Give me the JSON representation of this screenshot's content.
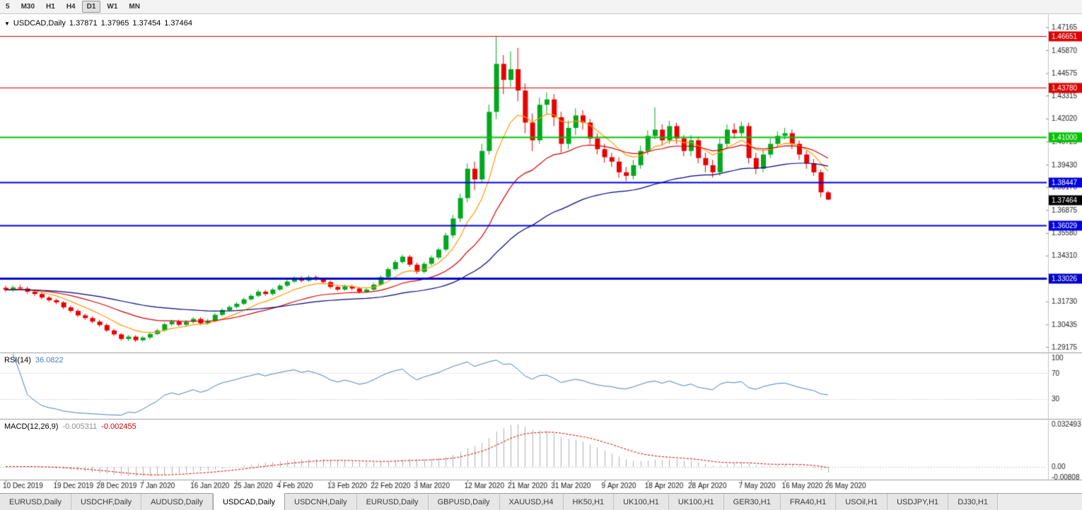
{
  "toolbar": {
    "timeframes": [
      "5",
      "M30",
      "H1",
      "H4",
      "D1",
      "W1",
      "MN"
    ],
    "active_timeframe": "D1"
  },
  "chart_title": {
    "dropdown_icon": "▼",
    "symbol": "USDCAD,Daily",
    "open": "1.37871",
    "high": "1.37965",
    "low": "1.37454",
    "close": "1.37464"
  },
  "chart_data": {
    "type": "candlestick",
    "symbol": "USDCAD",
    "timeframe": "Daily",
    "ylim": [
      1.289,
      1.479
    ],
    "colors": {
      "bull": "#00a81e",
      "bear": "#e80000",
      "background": "#ffffff",
      "axis_text": "#1a1a1a"
    },
    "candles": [
      [
        1.325,
        1.3262,
        1.3226,
        1.3238
      ],
      [
        1.3238,
        1.3264,
        1.3228,
        1.3252
      ],
      [
        1.3252,
        1.3266,
        1.3236,
        1.3246
      ],
      [
        1.3246,
        1.3256,
        1.3218,
        1.3228
      ],
      [
        1.3228,
        1.3238,
        1.3205,
        1.3215
      ],
      [
        1.3215,
        1.3225,
        1.3185,
        1.3195
      ],
      [
        1.3195,
        1.3205,
        1.317,
        1.318
      ],
      [
        1.318,
        1.319,
        1.3158,
        1.3168
      ],
      [
        1.3168,
        1.3176,
        1.313,
        1.314
      ],
      [
        1.314,
        1.315,
        1.311,
        1.312
      ],
      [
        1.312,
        1.313,
        1.3085,
        1.3095
      ],
      [
        1.3095,
        1.3105,
        1.307,
        1.308
      ],
      [
        1.308,
        1.309,
        1.305,
        1.306
      ],
      [
        1.306,
        1.307,
        1.303,
        1.304
      ],
      [
        1.304,
        1.305,
        1.3,
        1.301
      ],
      [
        1.301,
        1.302,
        1.2978,
        1.2988
      ],
      [
        1.2988,
        1.2996,
        1.2952,
        1.2962
      ],
      [
        1.2962,
        1.2985,
        1.295,
        1.2975
      ],
      [
        1.2975,
        1.2983,
        1.2945,
        1.2955
      ],
      [
        1.2955,
        1.298,
        1.2947,
        1.297
      ],
      [
        1.297,
        1.3,
        1.296,
        1.299
      ],
      [
        1.299,
        1.302,
        1.2982,
        1.301
      ],
      [
        1.301,
        1.3055,
        1.3002,
        1.3045
      ],
      [
        1.3045,
        1.307,
        1.3035,
        1.306
      ],
      [
        1.306,
        1.307,
        1.3032,
        1.3042
      ],
      [
        1.3042,
        1.3068,
        1.3034,
        1.3058
      ],
      [
        1.3058,
        1.3085,
        1.3048,
        1.3075
      ],
      [
        1.3075,
        1.3085,
        1.304,
        1.305
      ],
      [
        1.305,
        1.3075,
        1.3042,
        1.3065
      ],
      [
        1.3065,
        1.3108,
        1.3057,
        1.3098
      ],
      [
        1.3098,
        1.3135,
        1.309,
        1.3125
      ],
      [
        1.3125,
        1.3152,
        1.3117,
        1.3142
      ],
      [
        1.3142,
        1.317,
        1.3134,
        1.316
      ],
      [
        1.316,
        1.3195,
        1.3152,
        1.3185
      ],
      [
        1.3185,
        1.3215,
        1.3177,
        1.3205
      ],
      [
        1.3205,
        1.3238,
        1.3197,
        1.3228
      ],
      [
        1.3228,
        1.3238,
        1.3205,
        1.3215
      ],
      [
        1.3215,
        1.325,
        1.3207,
        1.324
      ],
      [
        1.324,
        1.3272,
        1.3232,
        1.3262
      ],
      [
        1.3262,
        1.3295,
        1.3254,
        1.3285
      ],
      [
        1.3285,
        1.3315,
        1.3277,
        1.3305
      ],
      [
        1.3305,
        1.3315,
        1.328,
        1.329
      ],
      [
        1.329,
        1.332,
        1.3282,
        1.331
      ],
      [
        1.331,
        1.332,
        1.3288,
        1.3298
      ],
      [
        1.3298,
        1.3308,
        1.3272,
        1.3282
      ],
      [
        1.3282,
        1.3292,
        1.3245,
        1.3255
      ],
      [
        1.3255,
        1.3265,
        1.323,
        1.324
      ],
      [
        1.324,
        1.3268,
        1.3232,
        1.3258
      ],
      [
        1.3258,
        1.3268,
        1.3236,
        1.3246
      ],
      [
        1.3246,
        1.3256,
        1.3218,
        1.3228
      ],
      [
        1.3228,
        1.325,
        1.322,
        1.324
      ],
      [
        1.324,
        1.3278,
        1.3232,
        1.3268
      ],
      [
        1.3268,
        1.332,
        1.326,
        1.331
      ],
      [
        1.331,
        1.3365,
        1.3302,
        1.3355
      ],
      [
        1.3355,
        1.3407,
        1.3347,
        1.3395
      ],
      [
        1.3395,
        1.3437,
        1.3385,
        1.3425
      ],
      [
        1.3425,
        1.3435,
        1.3368,
        1.338
      ],
      [
        1.338,
        1.3392,
        1.3328,
        1.334
      ],
      [
        1.334,
        1.3397,
        1.333,
        1.3385
      ],
      [
        1.3385,
        1.3432,
        1.3375,
        1.342
      ],
      [
        1.342,
        1.3477,
        1.341,
        1.3465
      ],
      [
        1.3465,
        1.356,
        1.3455,
        1.3545
      ],
      [
        1.3545,
        1.366,
        1.353,
        1.364
      ],
      [
        1.364,
        1.378,
        1.362,
        1.3755
      ],
      [
        1.3755,
        1.395,
        1.373,
        1.392
      ],
      [
        1.392,
        1.396,
        1.38,
        1.386
      ],
      [
        1.386,
        1.406,
        1.384,
        1.402
      ],
      [
        1.402,
        1.428,
        1.4,
        1.424
      ],
      [
        1.424,
        1.4668,
        1.42,
        1.451
      ],
      [
        1.451,
        1.456,
        1.434,
        1.442
      ],
      [
        1.442,
        1.458,
        1.438,
        1.448
      ],
      [
        1.448,
        1.46,
        1.43,
        1.436
      ],
      [
        1.436,
        1.44,
        1.412,
        1.418
      ],
      [
        1.418,
        1.423,
        1.402,
        1.408
      ],
      [
        1.408,
        1.432,
        1.406,
        1.428
      ],
      [
        1.428,
        1.435,
        1.423,
        1.431
      ],
      [
        1.431,
        1.434,
        1.416,
        1.421
      ],
      [
        1.421,
        1.424,
        1.401,
        1.406
      ],
      [
        1.406,
        1.419,
        1.403,
        1.415
      ],
      [
        1.415,
        1.426,
        1.411,
        1.422
      ],
      [
        1.422,
        1.425,
        1.414,
        1.418
      ],
      [
        1.418,
        1.42,
        1.406,
        1.409
      ],
      [
        1.409,
        1.412,
        1.4,
        1.403
      ],
      [
        1.403,
        1.406,
        1.3955,
        1.3985
      ],
      [
        1.3985,
        1.401,
        1.393,
        1.396
      ],
      [
        1.396,
        1.3985,
        1.387,
        1.39
      ],
      [
        1.39,
        1.393,
        1.385,
        1.388
      ],
      [
        1.388,
        1.397,
        1.386,
        1.394
      ],
      [
        1.394,
        1.405,
        1.392,
        1.402
      ],
      [
        1.402,
        1.4135,
        1.4,
        1.4105
      ],
      [
        1.4105,
        1.4265,
        1.4085,
        1.414
      ],
      [
        1.414,
        1.417,
        1.405,
        1.408
      ],
      [
        1.408,
        1.419,
        1.406,
        1.416
      ],
      [
        1.416,
        1.418,
        1.406,
        1.409
      ],
      [
        1.409,
        1.411,
        1.399,
        1.402
      ],
      [
        1.402,
        1.411,
        1.399,
        1.408
      ],
      [
        1.408,
        1.41,
        1.395,
        1.398
      ],
      [
        1.398,
        1.401,
        1.39,
        1.394
      ],
      [
        1.394,
        1.397,
        1.387,
        1.39
      ],
      [
        1.39,
        1.409,
        1.388,
        1.406
      ],
      [
        1.406,
        1.417,
        1.403,
        1.414
      ],
      [
        1.414,
        1.4175,
        1.409,
        1.412
      ],
      [
        1.412,
        1.4185,
        1.41,
        1.416
      ],
      [
        1.416,
        1.418,
        1.395,
        1.398
      ],
      [
        1.398,
        1.401,
        1.389,
        1.392
      ],
      [
        1.392,
        1.403,
        1.39,
        1.4
      ],
      [
        1.4,
        1.409,
        1.398,
        1.406
      ],
      [
        1.406,
        1.413,
        1.404,
        1.4105
      ],
      [
        1.4105,
        1.415,
        1.4085,
        1.412
      ],
      [
        1.412,
        1.414,
        1.403,
        1.406
      ],
      [
        1.406,
        1.408,
        1.397,
        1.4
      ],
      [
        1.4,
        1.402,
        1.392,
        1.395
      ],
      [
        1.395,
        1.3975,
        1.388,
        1.39
      ],
      [
        1.39,
        1.3915,
        1.376,
        1.3787
      ],
      [
        1.3787,
        1.37965,
        1.37454,
        1.37464
      ]
    ],
    "x_ticks": [
      {
        "index": 0,
        "label": "10 Dec 2019"
      },
      {
        "index": 7,
        "label": "19 Dec 2019"
      },
      {
        "index": 13,
        "label": "28 Dec 2019"
      },
      {
        "index": 19,
        "label": "7 Jan 2020"
      },
      {
        "index": 26,
        "label": "16 Jan 2020"
      },
      {
        "index": 32,
        "label": "25 Jan 2020"
      },
      {
        "index": 38,
        "label": "4 Feb 2020"
      },
      {
        "index": 45,
        "label": "13 Feb 2020"
      },
      {
        "index": 51,
        "label": "22 Feb 2020"
      },
      {
        "index": 57,
        "label": "3 Mar 2020"
      },
      {
        "index": 64,
        "label": "12 Mar 2020"
      },
      {
        "index": 70,
        "label": "21 Mar 2020"
      },
      {
        "index": 76,
        "label": "31 Mar 2020"
      },
      {
        "index": 83,
        "label": "9 Apr 2020"
      },
      {
        "index": 89,
        "label": "18 Apr 2020"
      },
      {
        "index": 95,
        "label": "28 Apr 2020"
      },
      {
        "index": 102,
        "label": "7 May 2020"
      },
      {
        "index": 108,
        "label": "16 May 2020"
      },
      {
        "index": 114,
        "label": "26 May 2020"
      }
    ],
    "y_axis_labels": [
      "1.47165",
      "1.45870",
      "1.44575",
      "1.43315",
      "1.42020",
      "1.40725",
      "1.39430",
      "1.38170",
      "1.36875",
      "1.35580",
      "1.34310",
      "1.33015",
      "1.31730",
      "1.30435",
      "1.29175"
    ],
    "levels": [
      {
        "value": 1.46651,
        "label": "1.46651",
        "color": "#dd0000",
        "width": 1
      },
      {
        "value": 1.4378,
        "label": "1.43780",
        "color": "#dd0000",
        "width": 1
      },
      {
        "value": 1.41,
        "label": "1.41000",
        "color": "#00c400",
        "width": 2
      },
      {
        "value": 1.38447,
        "label": "1.38447",
        "color": "#0000e0",
        "width": 2
      },
      {
        "value": 1.36029,
        "label": "1.36029",
        "color": "#0000e0",
        "width": 2
      },
      {
        "value": 1.33026,
        "label": "1.33026",
        "color": "#0000cc",
        "width": 3
      }
    ],
    "current_price": {
      "value": 1.37464,
      "label": "1.37464",
      "bg": "#000000"
    },
    "moving_averages": [
      {
        "name": "ma-fast",
        "period": 8,
        "color": "#ff9900"
      },
      {
        "name": "ma-medium",
        "period": 21,
        "color": "#d40000"
      },
      {
        "name": "ma-slow",
        "period": 50,
        "color": "#000080"
      }
    ],
    "rsi": {
      "name": "RSI(14)",
      "value": "36.0822",
      "period": 14,
      "color": "#4a7ebb",
      "levels": [
        70,
        30
      ],
      "axis_labels": [
        "100",
        "70",
        "30"
      ]
    },
    "macd": {
      "name": "MACD(12,26,9)",
      "value_main": "-0.005311",
      "value_signal": "-0.002455",
      "fast": 12,
      "slow": 26,
      "signal_period": 9,
      "hist_color": "#b0b0b0",
      "signal_color": "#cc0000",
      "axis_top": "0.032493",
      "axis_zero": "0.00",
      "axis_bottom": "-0.00808"
    }
  },
  "tabs": {
    "items": [
      "EURUSD,Daily",
      "USDCHF,Daily",
      "AUDUSD,Daily",
      "USDCAD,Daily",
      "USDCNH,Daily",
      "EURUSD,Daily",
      "GBPUSD,Daily",
      "XAUUSD,H4",
      "HK50,H1",
      "UK100,H1",
      "UK100,H1",
      "GER30,H1",
      "FRA40,H1",
      "USOil,H1",
      "USDJPY,H1",
      "DJ30,H1"
    ],
    "active_index": 3
  }
}
